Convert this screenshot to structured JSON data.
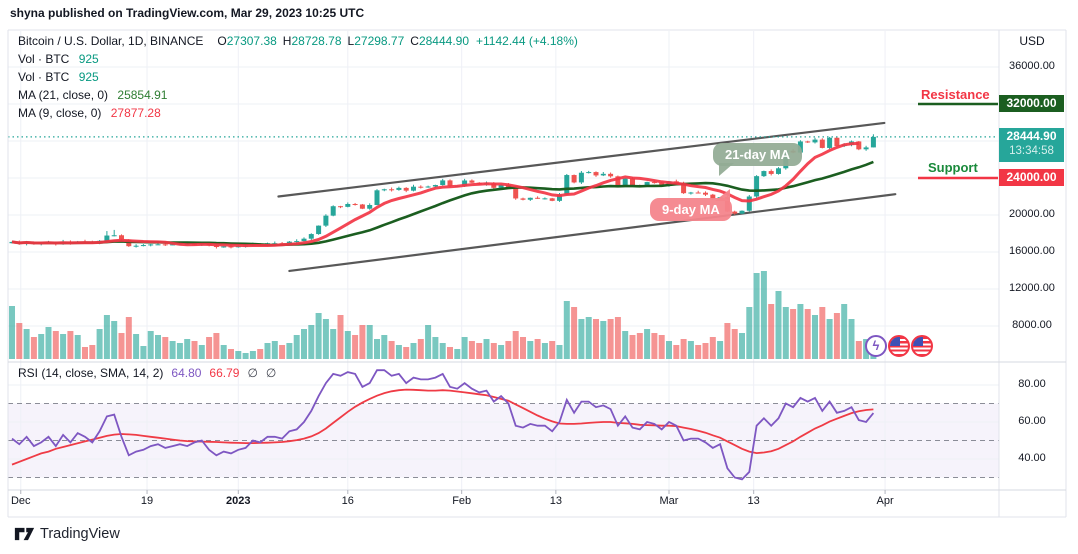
{
  "header": {
    "published": "shyna published on TradingView.com, Mar 29, 2023 10:25 UTC"
  },
  "chart": {
    "legend": {
      "symbol": "Bitcoin / U.S. Dollar, 1D, BINANCE",
      "o_label": "O",
      "o": "27307.38",
      "h_label": "H",
      "h": "28728.78",
      "l_label": "L",
      "l": "27298.77",
      "c_label": "C",
      "c": "28444.90",
      "change": "+1142.44 (+4.18%)",
      "vol_row1": {
        "label": "Vol · BTC",
        "value": "925"
      },
      "vol_row2": {
        "label": "Vol · BTC",
        "value": "925"
      },
      "ma21_row": {
        "label": "MA (21, close, 0)",
        "value": "25854.91"
      },
      "ma9_row": {
        "label": "MA (9, close, 0)",
        "value": "27877.28"
      }
    },
    "rsi_legend": {
      "label": "RSI (14, close, SMA, 14, 2)",
      "v1": "64.80",
      "v2": "66.79",
      "nul1": "∅",
      "nul2": "∅"
    },
    "price_axis": {
      "currency": "USD",
      "ticks": [
        {
          "label": "36000.00",
          "value": 36000
        },
        {
          "label": "20000.00",
          "value": 20000
        },
        {
          "label": "16000.00",
          "value": 16000
        },
        {
          "label": "12000.00",
          "value": 12000
        },
        {
          "label": "8000.00",
          "value": 8000
        }
      ]
    },
    "rsi_axis": {
      "ticks": [
        {
          "label": "80.00",
          "value": 80
        },
        {
          "label": "60.00",
          "value": 60
        },
        {
          "label": "40.00",
          "value": 40
        }
      ]
    },
    "time_axis": {
      "ticks": [
        {
          "label": "Dec",
          "idx": 1.2
        },
        {
          "label": "19",
          "idx": 18.5
        },
        {
          "label": "2023",
          "idx": 31,
          "bold": true
        },
        {
          "label": "16",
          "idx": 46
        },
        {
          "label": "Feb",
          "idx": 61.6
        },
        {
          "label": "13",
          "idx": 74.5
        },
        {
          "label": "Mar",
          "idx": 90
        },
        {
          "label": "13",
          "idx": 101.6
        },
        {
          "label": "Apr",
          "idx": 119.6
        }
      ]
    },
    "badges": {
      "resistance_price": "32000.00",
      "current_price": "28444.90",
      "countdown": "13:34:58",
      "support_price": "24000.00"
    },
    "annotations": {
      "resistance": "Resistance",
      "support": "Support",
      "ma21_callout": "21-day MA",
      "ma9_callout": "9-day MA"
    }
  },
  "footer": {
    "brand": "TradingView"
  },
  "colors": {
    "up": "#26a69a",
    "down": "#ef5350",
    "teal_text": "#089981",
    "red": "#f23645",
    "ma21_green": "#1b5e20",
    "rsi_purple": "#7e57c2",
    "resistance_badge": "#1b5e20",
    "support_badge": "#f23645",
    "current_badge": "#26a69a"
  },
  "chart_data": {
    "type": "bar",
    "subtype": "candlestick-with-volume-and-rsi",
    "symbol": "Bitcoin / U.S. Dollar",
    "interval": "1D",
    "exchange": "BINANCE",
    "start_date": "2022-12-01",
    "today_ohlc": {
      "open": 27307.38,
      "high": 28728.78,
      "low": 27298.77,
      "close": 28444.9,
      "change": 1142.44,
      "change_pct": 4.18
    },
    "ma_values": {
      "ma21": 25854.91,
      "ma9": 27877.28
    },
    "rsi_values": {
      "rsi": 64.8,
      "rsi_sma": 66.79
    },
    "levels": {
      "resistance": 32000,
      "support": 24000,
      "current": 28444.9
    },
    "price_axis_ticks": [
      36000,
      32000,
      28000,
      24000,
      20000,
      16000,
      12000,
      8000
    ],
    "rsi_guides": {
      "upper": 70,
      "middle": 50,
      "lower": 30
    },
    "trendlines": [
      {
        "from_idx": 36.5,
        "from_price": 22000,
        "to_idx": 119.5,
        "to_price": 29950
      },
      {
        "from_idx": 38,
        "from_price": 13950,
        "to_idx": 121,
        "to_price": 22250
      }
    ],
    "first_open": 16950,
    "close": [
      17090,
      16880,
      17100,
      16870,
      16950,
      17090,
      16840,
      17130,
      16920,
      17130,
      17090,
      16950,
      17210,
      17780,
      17810,
      17360,
      16630,
      16680,
      16750,
      16820,
      16830,
      16780,
      16820,
      16830,
      16840,
      16830,
      16920,
      16700,
      16540,
      16600,
      16540,
      16620,
      16680,
      16850,
      16830,
      16950,
      16950,
      16940,
      17120,
      17180,
      17440,
      17940,
      18850,
      19930,
      20950,
      20880,
      21190,
      21140,
      20680,
      21080,
      22670,
      22780,
      22710,
      22930,
      22630,
      23060,
      23010,
      23080,
      23240,
      23740,
      23130,
      23140,
      23730,
      23490,
      23330,
      23430,
      22940,
      23250,
      22970,
      21790,
      21650,
      21860,
      21790,
      21800,
      21530,
      22200,
      24320,
      23520,
      24570,
      24640,
      24280,
      24450,
      24180,
      23200,
      23940,
      23190,
      23160,
      23560,
      23500,
      23150,
      23640,
      23470,
      22360,
      22430,
      22410,
      22200,
      21700,
      21930,
      20370,
      20150,
      20460,
      22000,
      24200,
      24750,
      24440,
      25050,
      26950,
      26750,
      27950,
      27850,
      28150,
      27250,
      28350,
      27450,
      27600,
      27950,
      27100,
      27307.38,
      28444.9
    ],
    "volume_rel": [
      53,
      36,
      30,
      22,
      25,
      32,
      28,
      25,
      28,
      24,
      12,
      14,
      30,
      44,
      38,
      26,
      42,
      25,
      13,
      28,
      24,
      22,
      18,
      16,
      20,
      18,
      14,
      22,
      26,
      14,
      10,
      8,
      6,
      8,
      10,
      16,
      18,
      14,
      16,
      24,
      30,
      34,
      46,
      40,
      30,
      44,
      28,
      24,
      34,
      34,
      20,
      24,
      18,
      14,
      12,
      16,
      20,
      34,
      22,
      16,
      12,
      10,
      22,
      18,
      16,
      20,
      16,
      14,
      18,
      28,
      22,
      18,
      20,
      16,
      18,
      14,
      58,
      52,
      40,
      42,
      40,
      38,
      40,
      42,
      28,
      24,
      26,
      30,
      26,
      24,
      18,
      14,
      20,
      18,
      14,
      16,
      22,
      18,
      36,
      30,
      26,
      52,
      86,
      88,
      55,
      68,
      52,
      50,
      55,
      50,
      44,
      52,
      40,
      46,
      55,
      40,
      18,
      20,
      12
    ],
    "rsi": [
      51,
      48,
      52,
      47,
      49,
      52,
      47,
      53,
      49,
      54,
      52,
      49,
      55,
      63,
      64,
      52,
      42,
      44,
      45,
      47,
      48,
      46,
      47,
      48,
      47,
      49,
      50,
      45,
      42,
      44,
      43,
      45,
      46,
      50,
      49,
      52,
      52,
      51,
      55,
      56,
      60,
      66,
      74,
      81,
      86,
      85,
      87,
      86,
      79,
      81,
      88,
      88,
      85,
      86,
      81,
      84,
      83,
      83,
      84,
      86,
      79,
      78,
      81,
      78,
      76,
      77,
      71,
      74,
      70,
      58,
      57,
      59,
      58,
      58,
      55,
      60,
      72,
      65,
      71,
      71,
      68,
      69,
      67,
      58,
      63,
      57,
      56,
      60,
      59,
      56,
      60,
      58,
      50,
      51,
      51,
      49,
      46,
      48,
      35,
      30,
      29,
      33,
      58,
      62,
      58,
      62,
      70,
      68,
      73,
      71,
      73,
      66,
      71,
      65,
      66,
      68,
      61,
      60,
      64.8
    ],
    "rsi_sma": [
      37,
      38.5,
      40,
      41.5,
      43,
      44,
      45.5,
      46.5,
      47.5,
      48.5,
      49.5,
      50.5,
      51.5,
      52.5,
      53.2,
      53.5,
      53.3,
      53,
      52.5,
      52,
      51.5,
      51,
      50.5,
      50,
      49.7,
      49.5,
      49.4,
      49.3,
      49.2,
      49,
      48.8,
      48.7,
      48.6,
      48.6,
      48.7,
      48.8,
      49,
      49.2,
      49.6,
      50.2,
      51,
      52.2,
      54,
      56.5,
      59.5,
      62.5,
      65.5,
      68.2,
      70.5,
      72.5,
      74.2,
      75.6,
      76.6,
      77.2,
      77.5,
      77.4,
      77.2,
      77,
      77,
      77.2,
      77,
      76.5,
      76,
      75.5,
      75,
      74.5,
      73.5,
      72.5,
      71.5,
      69.5,
      67.5,
      65.5,
      63.5,
      61.8,
      60.3,
      59.2,
      59,
      59,
      59.2,
      59.5,
      59.8,
      60,
      60,
      59.5,
      59.3,
      59,
      58.5,
      58.3,
      58.2,
      58,
      58,
      57.8,
      57,
      56.2,
      55.3,
      54.2,
      52.8,
      51.5,
      49.5,
      47.5,
      45.5,
      44,
      43.2,
      43.5,
      44.2,
      45.5,
      47.5,
      49.5,
      52,
      54.2,
      56.5,
      58.2,
      60.2,
      61.8,
      63.3,
      64.8,
      65.8,
      66.5,
      66.79
    ]
  }
}
